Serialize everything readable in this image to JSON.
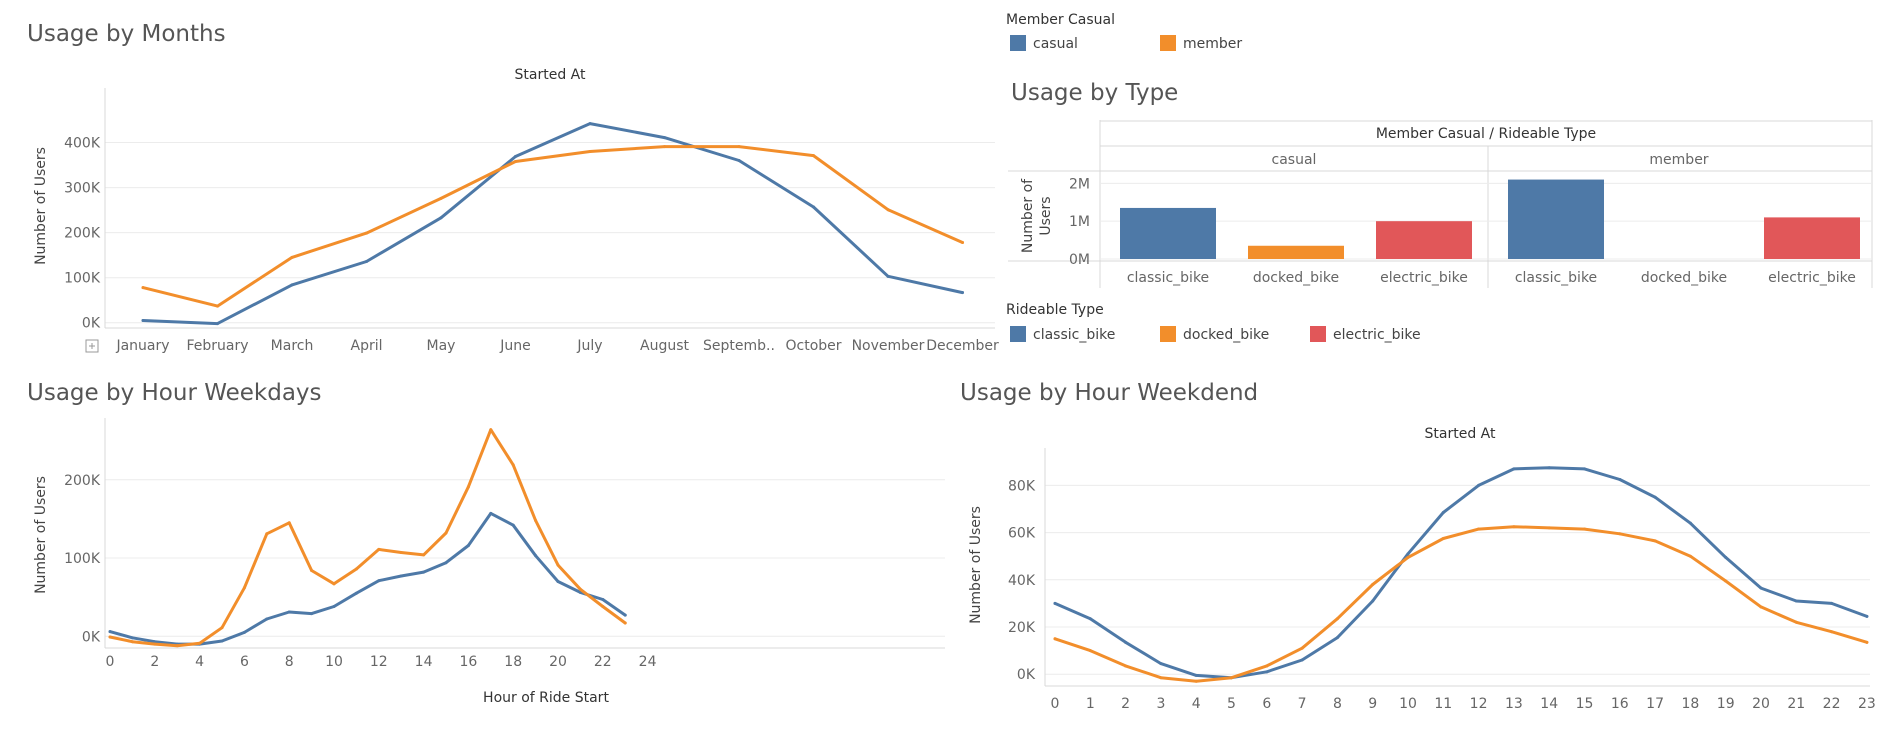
{
  "colors": {
    "casual": "#4e79a7",
    "member": "#f28e2b",
    "electric": "#e15759",
    "grid": "#ececec",
    "axis": "#d9d9d9"
  },
  "chart_data": [
    {
      "id": "months",
      "type": "line",
      "title": "Usage by Months",
      "xlabel": "Started At",
      "ylabel": "Number of Users",
      "categories": [
        "January",
        "February",
        "March",
        "April",
        "May",
        "June",
        "July",
        "August",
        "Septemb..",
        "October",
        "November",
        "December"
      ],
      "series": [
        {
          "name": "casual",
          "values": [
            5000,
            -2000,
            84000,
            136000,
            233000,
            369000,
            442000,
            411000,
            360000,
            257000,
            103000,
            67000
          ]
        },
        {
          "name": "member",
          "values": [
            78000,
            37000,
            145000,
            199000,
            276000,
            358000,
            380000,
            391000,
            391000,
            371000,
            251000,
            178000
          ]
        }
      ],
      "yticks": [
        "0K",
        "100K",
        "200K",
        "300K",
        "400K"
      ],
      "ylim": [
        -5000,
        450000
      ],
      "grid": true
    },
    {
      "id": "type",
      "type": "bar",
      "title": "Usage by Type",
      "header": "Member Casual / Rideable Type",
      "ylabel": "Number of Users",
      "groups": [
        "casual",
        "member"
      ],
      "categories": [
        "classic_bike",
        "docked_bike",
        "electric_bike"
      ],
      "values": [
        [
          1350000,
          350000,
          1000000
        ],
        [
          2100000,
          0,
          1100000
        ]
      ],
      "yticks": [
        "0M",
        "1M",
        "2M"
      ],
      "ylim": [
        0,
        2300000
      ],
      "grid": true
    },
    {
      "id": "weekdays",
      "type": "line",
      "title": "Usage by Hour Weekdays",
      "xlabel": "Hour of Ride Start",
      "ylabel": "Number of Users",
      "x": [
        0,
        1,
        2,
        3,
        4,
        5,
        6,
        7,
        8,
        9,
        10,
        11,
        12,
        13,
        14,
        15,
        16,
        17,
        18,
        19,
        20,
        21,
        22,
        23
      ],
      "xticks": [
        "0",
        "2",
        "4",
        "6",
        "8",
        "10",
        "12",
        "14",
        "16",
        "18",
        "20",
        "22",
        "24"
      ],
      "series": [
        {
          "name": "casual",
          "values": [
            6000,
            -2000,
            -7000,
            -10000,
            -10000,
            -6000,
            5000,
            22000,
            31000,
            29000,
            38000,
            55000,
            71000,
            77000,
            82000,
            94000,
            116000,
            157000,
            142000,
            103000,
            70000,
            56000,
            47000,
            27000
          ]
        },
        {
          "name": "member",
          "values": [
            -1000,
            -7000,
            -10000,
            -12000,
            -9000,
            11000,
            62000,
            131000,
            145000,
            84000,
            67000,
            86000,
            111000,
            107000,
            104000,
            132000,
            191000,
            264000,
            219000,
            148000,
            91000,
            60000,
            38000,
            17000
          ]
        }
      ],
      "yticks": [
        "0K",
        "100K",
        "200K"
      ],
      "ylim": [
        -15000,
        270000
      ],
      "grid": true
    },
    {
      "id": "weekend",
      "type": "line",
      "title": "Usage by Hour Weekdend",
      "xlabel": "Started At",
      "ylabel": "Number of Users",
      "x": [
        0,
        1,
        2,
        3,
        4,
        5,
        6,
        7,
        8,
        9,
        10,
        11,
        12,
        13,
        14,
        15,
        16,
        17,
        18,
        19,
        20,
        21,
        22,
        23
      ],
      "series": [
        {
          "name": "casual",
          "values": [
            30000,
            23500,
            13500,
            4500,
            -500,
            -1500,
            1000,
            6000,
            15500,
            31000,
            51000,
            68500,
            80000,
            87000,
            87500,
            87000,
            82500,
            75000,
            64000,
            49500,
            36500,
            31000,
            30000,
            24500
          ]
        },
        {
          "name": "member",
          "values": [
            15000,
            10000,
            3500,
            -1500,
            -3000,
            -1500,
            3500,
            11000,
            23500,
            38000,
            49500,
            57500,
            61500,
            62500,
            62000,
            61500,
            59500,
            56500,
            50000,
            39500,
            28500,
            22000,
            18000,
            13500
          ]
        }
      ],
      "yticks": [
        "0K",
        "20K",
        "40K",
        "60K",
        "80K"
      ],
      "ylim": [
        -5000,
        95000
      ],
      "grid": true
    }
  ],
  "legends": {
    "member_casual": {
      "title": "Member Casual",
      "items": [
        "casual",
        "member"
      ]
    },
    "rideable_type": {
      "title": "Rideable Type",
      "items": [
        "classic_bike",
        "docked_bike",
        "electric_bike"
      ]
    }
  }
}
